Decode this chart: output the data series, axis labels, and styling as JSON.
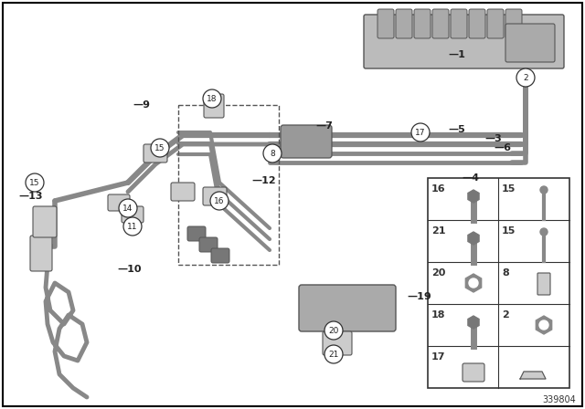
{
  "background_color": "#ffffff",
  "border_color": "#000000",
  "diagram_number": "339804",
  "dgray": "#555555",
  "lgray": "#cccccc",
  "mgray": "#999999",
  "dgray2": "#444444"
}
